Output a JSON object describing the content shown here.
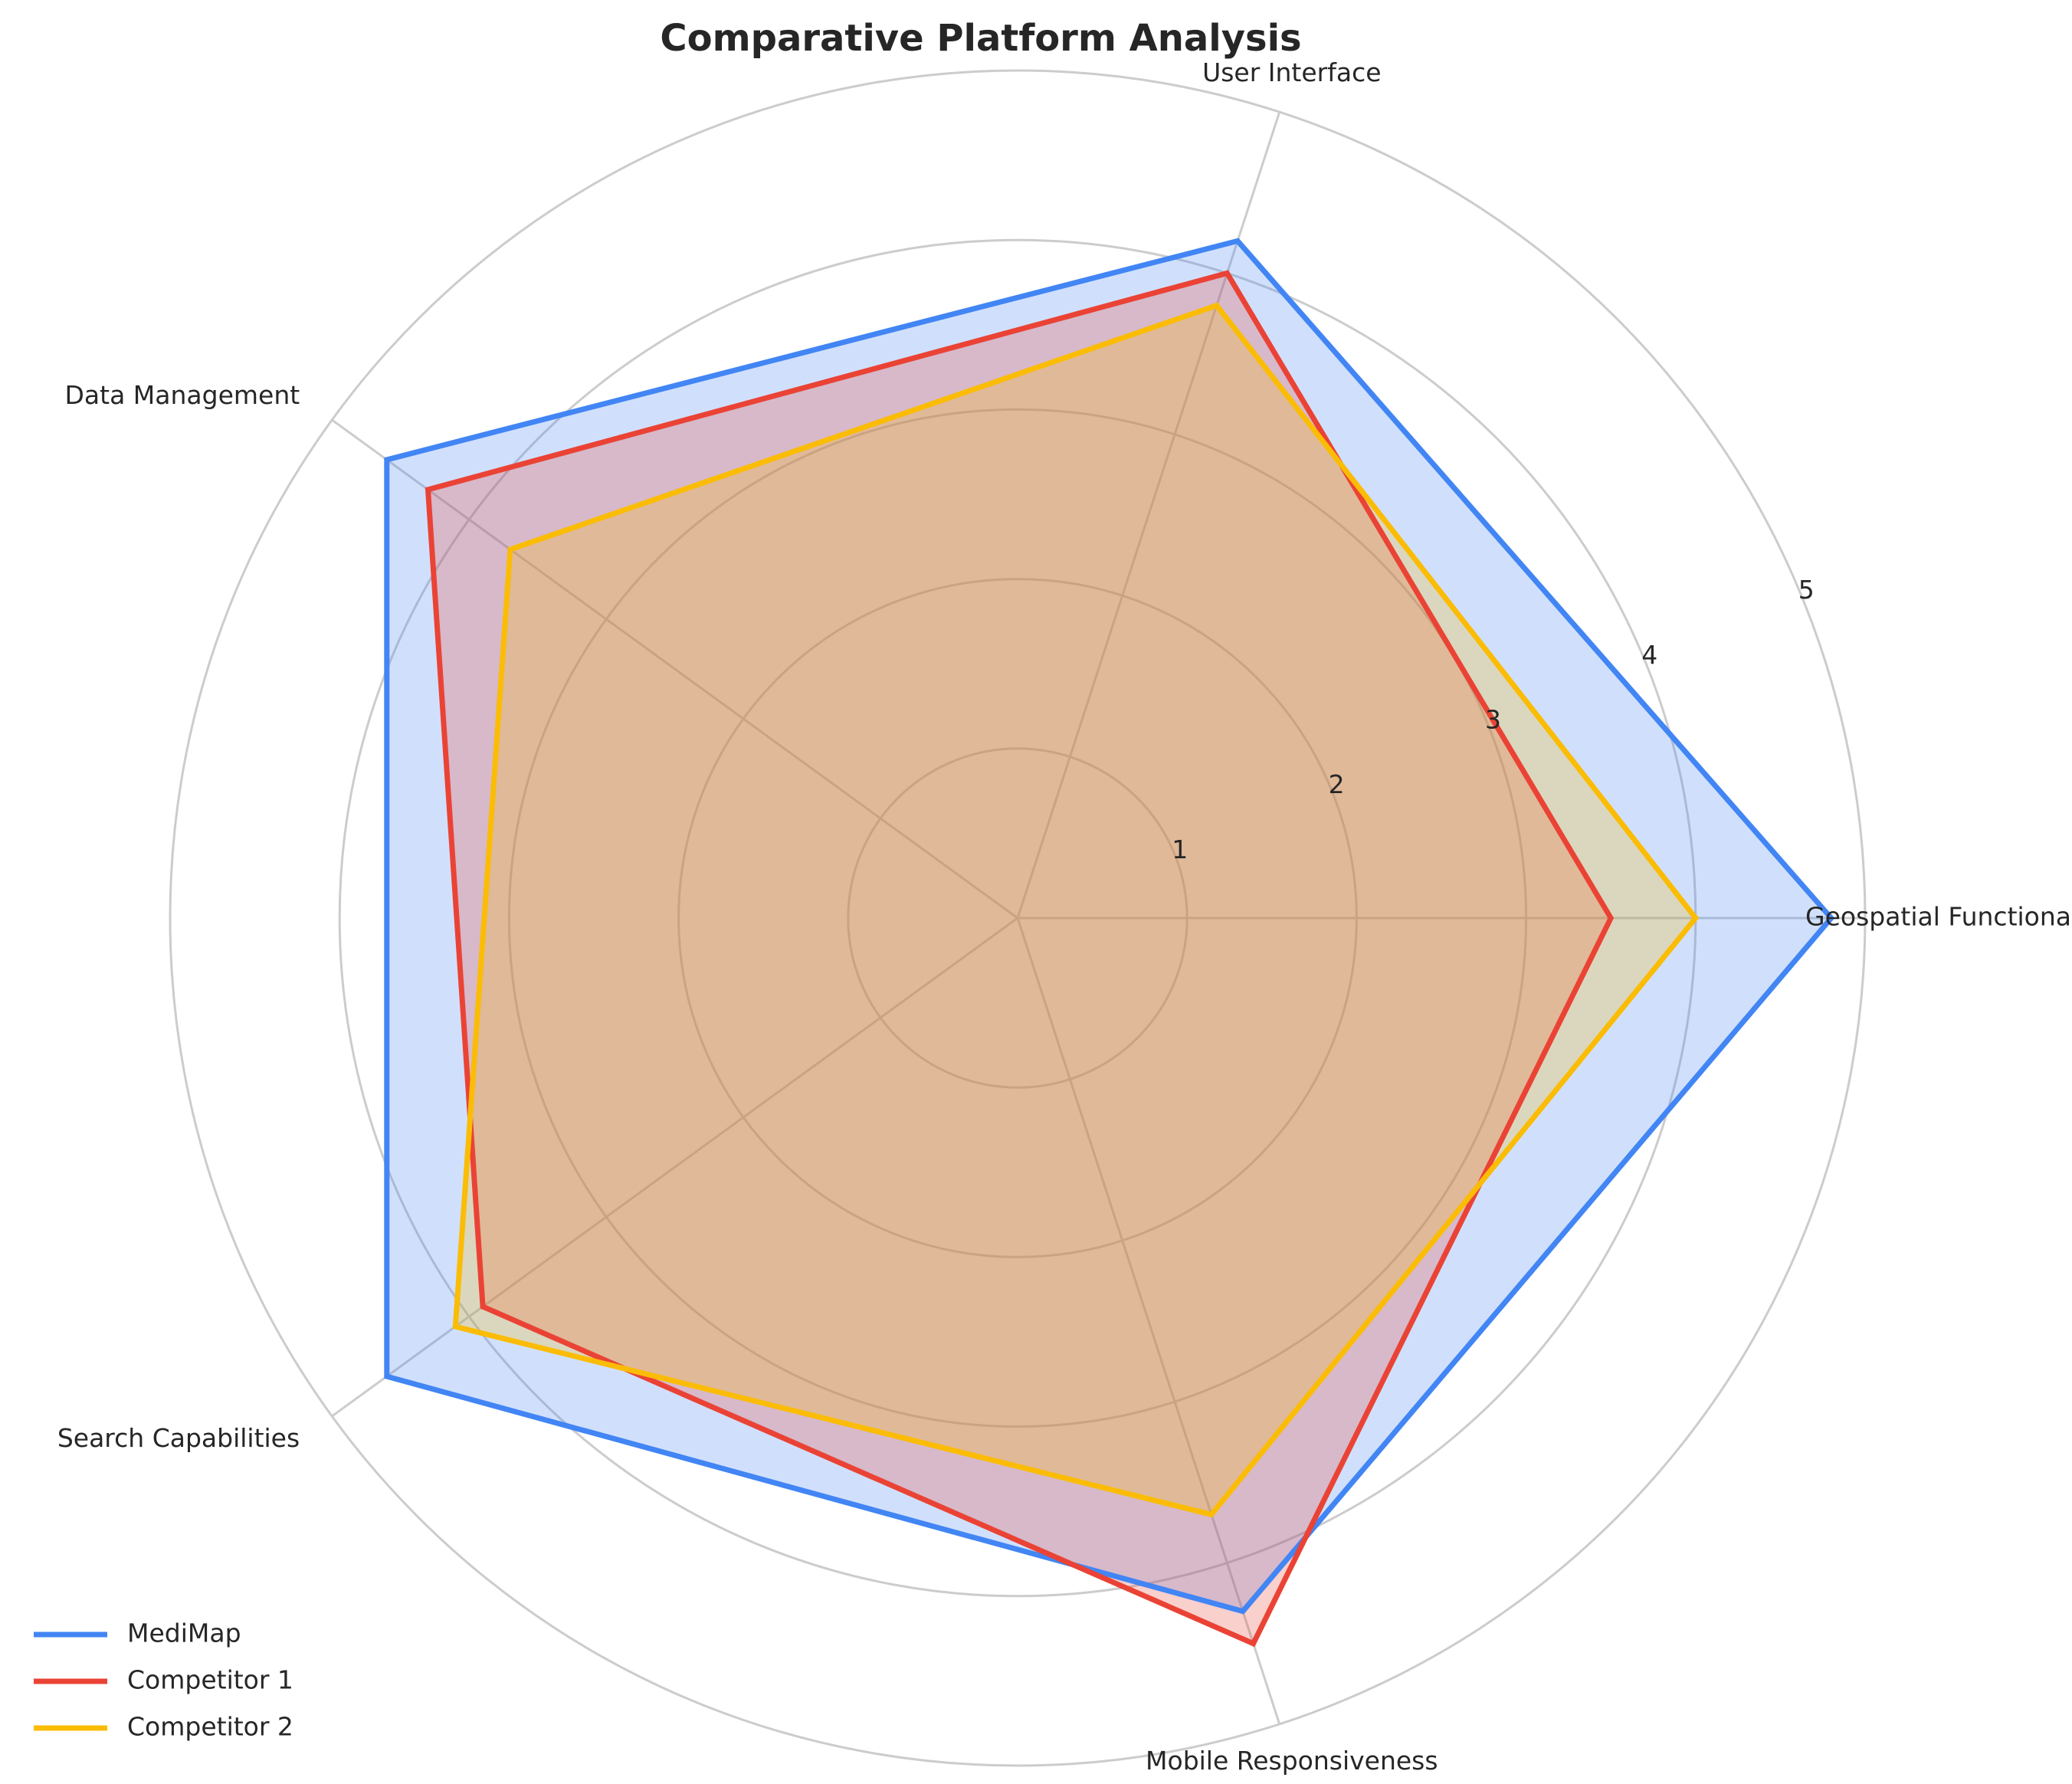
{
  "chart_data": {
    "type": "radar",
    "title": "Comparative Platform Analysis",
    "categories": [
      "Geospatial Functionality",
      "User Interface",
      "Data Management",
      "Search Capabilities",
      "Mobile Responsiveness"
    ],
    "rlim": [
      0,
      5
    ],
    "rticks": [
      1,
      2,
      3,
      4,
      5
    ],
    "grid": true,
    "legend_placement": "bottom-left",
    "series": [
      {
        "name": "MediMap",
        "values": [
          4.8,
          4.2,
          4.6,
          4.6,
          4.3
        ],
        "color": "#4285F4"
      },
      {
        "name": "Competitor 1",
        "values": [
          3.5,
          4.0,
          4.3,
          3.9,
          4.5
        ],
        "color": "#EA4335"
      },
      {
        "name": "Competitor 2",
        "values": [
          4.0,
          3.8,
          3.7,
          4.1,
          3.7
        ],
        "color": "#FBBC05"
      }
    ]
  }
}
